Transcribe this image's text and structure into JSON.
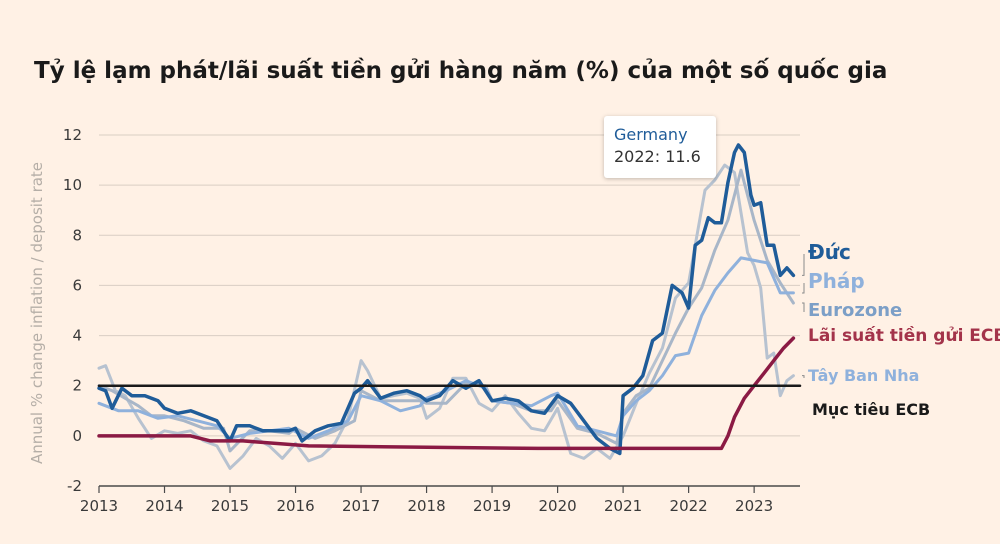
{
  "title": "Tỷ lệ lạm phát/lãi suất tiền gửi hàng năm (%) của một số quốc gia",
  "colors": {
    "background": "#fff1e5",
    "germany": "#1f5c99",
    "france": "#8fb1dc",
    "eurozone": "#a8b6c8",
    "spain": "#b7c2d0",
    "ecb_rate": "#8b1a44",
    "ecb_target": "#1a1a1a"
  },
  "tooltip": {
    "series": "Germany",
    "value": "2022: 11.6"
  },
  "chart_data": {
    "type": "line",
    "title": "Tỷ lệ lạm phát/lãi suất tiền gửi hàng năm (%) của một số quốc gia",
    "ylabel": "Annual % change inflation / deposit rate",
    "xlabel": "",
    "xlim": [
      2013,
      2023.7
    ],
    "ylim": [
      -2,
      12
    ],
    "x_ticks": [
      "2013",
      "2014",
      "2015",
      "2016",
      "2017",
      "2018",
      "2019",
      "2020",
      "2021",
      "2022",
      "2023"
    ],
    "y_ticks": [
      "-2",
      "0",
      "2",
      "4",
      "6",
      "8",
      "10",
      "12"
    ],
    "grid": true,
    "legend": "direct labels at right",
    "series": [
      {
        "name": "Tây Ban Nha",
        "color": "#b7c2d0",
        "x": [
          2013,
          2013.1,
          2013.25,
          2013.4,
          2013.6,
          2013.8,
          2014,
          2014.2,
          2014.4,
          2014.6,
          2014.8,
          2015,
          2015.2,
          2015.4,
          2015.6,
          2015.8,
          2016,
          2016.2,
          2016.4,
          2016.6,
          2016.8,
          2017,
          2017.1,
          2017.3,
          2017.5,
          2017.7,
          2017.9,
          2018,
          2018.2,
          2018.4,
          2018.6,
          2018.8,
          2019,
          2019.2,
          2019.4,
          2019.6,
          2019.8,
          2020,
          2020.2,
          2020.4,
          2020.6,
          2020.8,
          2021,
          2021.2,
          2021.4,
          2021.6,
          2021.8,
          2022,
          2022.1,
          2022.25,
          2022.4,
          2022.55,
          2022.7,
          2022.8,
          2022.9,
          2023,
          2023.1,
          2023.2,
          2023.3,
          2023.4,
          2023.5,
          2023.6
        ],
        "values": [
          2.7,
          2.8,
          1.8,
          1.6,
          0.7,
          -0.1,
          0.2,
          0.1,
          0.2,
          -0.2,
          -0.4,
          -1.3,
          -0.8,
          -0.1,
          -0.4,
          -0.9,
          -0.3,
          -1.0,
          -0.8,
          -0.3,
          0.7,
          3.0,
          2.6,
          1.5,
          1.6,
          1.7,
          1.5,
          0.7,
          1.1,
          2.3,
          2.3,
          1.3,
          1.0,
          1.6,
          0.9,
          0.3,
          0.2,
          1.1,
          -0.7,
          -0.9,
          -0.5,
          -0.9,
          0.0,
          1.3,
          2.5,
          3.5,
          5.5,
          6.1,
          7.6,
          9.8,
          10.2,
          10.8,
          10.5,
          8.9,
          7.3,
          6.8,
          5.9,
          3.1,
          3.3,
          1.6,
          2.2,
          2.4
        ]
      },
      {
        "name": "Eurozone",
        "color": "#a8b6c8",
        "x": [
          2013,
          2013.2,
          2013.4,
          2013.6,
          2013.8,
          2014,
          2014.3,
          2014.6,
          2014.9,
          2015,
          2015.3,
          2015.6,
          2015.9,
          2016,
          2016.3,
          2016.6,
          2016.9,
          2017,
          2017.3,
          2017.6,
          2017.9,
          2018,
          2018.3,
          2018.6,
          2018.9,
          2019,
          2019.3,
          2019.6,
          2019.9,
          2020,
          2020.3,
          2020.6,
          2020.9,
          2021,
          2021.2,
          2021.4,
          2021.6,
          2021.8,
          2022,
          2022.2,
          2022.4,
          2022.6,
          2022.8,
          2023,
          2023.2,
          2023.4,
          2023.6
        ],
        "values": [
          2.0,
          1.8,
          1.5,
          1.2,
          0.8,
          0.8,
          0.6,
          0.3,
          0.3,
          -0.6,
          0.2,
          0.2,
          0.1,
          0.3,
          -0.1,
          0.2,
          0.6,
          1.8,
          1.4,
          1.4,
          1.4,
          1.3,
          1.3,
          2.1,
          2.0,
          1.4,
          1.3,
          1.0,
          1.0,
          1.4,
          0.3,
          0.1,
          -0.3,
          0.9,
          1.6,
          1.9,
          3.0,
          4.1,
          5.1,
          5.9,
          7.4,
          8.6,
          10.6,
          8.6,
          7.0,
          6.1,
          5.3
        ]
      },
      {
        "name": "Pháp",
        "color": "#8fb1dc",
        "x": [
          2013,
          2013.3,
          2013.6,
          2013.9,
          2014.2,
          2014.5,
          2014.8,
          2015,
          2015.3,
          2015.6,
          2015.9,
          2016.2,
          2016.5,
          2016.8,
          2017,
          2017.3,
          2017.6,
          2017.9,
          2018,
          2018.3,
          2018.6,
          2018.9,
          2019,
          2019.3,
          2019.6,
          2019.9,
          2020,
          2020.3,
          2020.6,
          2020.9,
          2021,
          2021.2,
          2021.4,
          2021.6,
          2021.8,
          2022,
          2022.2,
          2022.4,
          2022.6,
          2022.8,
          2023,
          2023.2,
          2023.4,
          2023.6
        ],
        "values": [
          1.3,
          1.0,
          1.0,
          0.7,
          0.8,
          0.6,
          0.4,
          -0.1,
          0.1,
          0.2,
          0.3,
          -0.1,
          0.2,
          0.6,
          1.6,
          1.4,
          1.0,
          1.2,
          1.5,
          1.8,
          2.2,
          1.9,
          1.4,
          1.3,
          1.2,
          1.6,
          1.7,
          0.4,
          0.2,
          0.0,
          0.8,
          1.4,
          1.8,
          2.4,
          3.2,
          3.3,
          4.8,
          5.8,
          6.5,
          7.1,
          7.0,
          6.9,
          5.7,
          5.7
        ]
      },
      {
        "name": "Đức",
        "color": "#1f5c99",
        "x": [
          2013,
          2013.1,
          2013.2,
          2013.35,
          2013.5,
          2013.7,
          2013.9,
          2014,
          2014.2,
          2014.4,
          2014.6,
          2014.8,
          2015,
          2015.1,
          2015.3,
          2015.5,
          2015.7,
          2015.9,
          2016,
          2016.1,
          2016.3,
          2016.5,
          2016.7,
          2016.9,
          2017,
          2017.1,
          2017.3,
          2017.5,
          2017.7,
          2017.9,
          2018,
          2018.2,
          2018.4,
          2018.6,
          2018.8,
          2019,
          2019.2,
          2019.4,
          2019.6,
          2019.8,
          2020,
          2020.2,
          2020.4,
          2020.6,
          2020.8,
          2020.95,
          2021,
          2021.15,
          2021.3,
          2021.45,
          2021.6,
          2021.75,
          2021.9,
          2022,
          2022.1,
          2022.2,
          2022.3,
          2022.4,
          2022.5,
          2022.6,
          2022.7,
          2022.76,
          2022.85,
          2022.95,
          2023,
          2023.1,
          2023.2,
          2023.3,
          2023.4,
          2023.5,
          2023.6
        ],
        "values": [
          1.9,
          1.8,
          1.1,
          1.9,
          1.6,
          1.6,
          1.4,
          1.1,
          0.9,
          1.0,
          0.8,
          0.6,
          -0.2,
          0.4,
          0.4,
          0.2,
          0.2,
          0.2,
          0.3,
          -0.2,
          0.2,
          0.4,
          0.5,
          1.7,
          1.9,
          2.2,
          1.5,
          1.7,
          1.8,
          1.6,
          1.4,
          1.6,
          2.2,
          1.9,
          2.2,
          1.4,
          1.5,
          1.4,
          1.0,
          0.9,
          1.6,
          1.3,
          0.6,
          -0.1,
          -0.5,
          -0.7,
          1.6,
          1.9,
          2.4,
          3.8,
          4.1,
          6.0,
          5.7,
          5.1,
          7.6,
          7.8,
          8.7,
          8.5,
          8.5,
          10.1,
          11.3,
          11.6,
          11.3,
          9.6,
          9.2,
          9.3,
          7.6,
          7.6,
          6.4,
          6.7,
          6.4
        ]
      },
      {
        "name": "Lãi suất tiền gửi ECB",
        "color": "#8b1a44",
        "x": [
          2013,
          2014.4,
          2014.7,
          2015.2,
          2016.2,
          2019.7,
          2022.5,
          2022.6,
          2022.7,
          2022.85,
          2023,
          2023.15,
          2023.3,
          2023.45,
          2023.6
        ],
        "values": [
          0,
          0,
          -0.2,
          -0.2,
          -0.4,
          -0.5,
          -0.5,
          0,
          0.75,
          1.5,
          2.0,
          2.5,
          3.0,
          3.5,
          3.9
        ]
      },
      {
        "name": "Mục tiêu ECB",
        "color": "#1a1a1a",
        "x": [
          2013,
          2023.7
        ],
        "values": [
          2,
          2
        ]
      }
    ]
  },
  "labels": {
    "germany": "Đức",
    "france": "Pháp",
    "eurozone": "Eurozone",
    "ecb_rate": "Lãi suất tiền gửi ECB",
    "spain": "Tây Ban Nha",
    "ecb_target": "Mục tiêu ECB"
  }
}
